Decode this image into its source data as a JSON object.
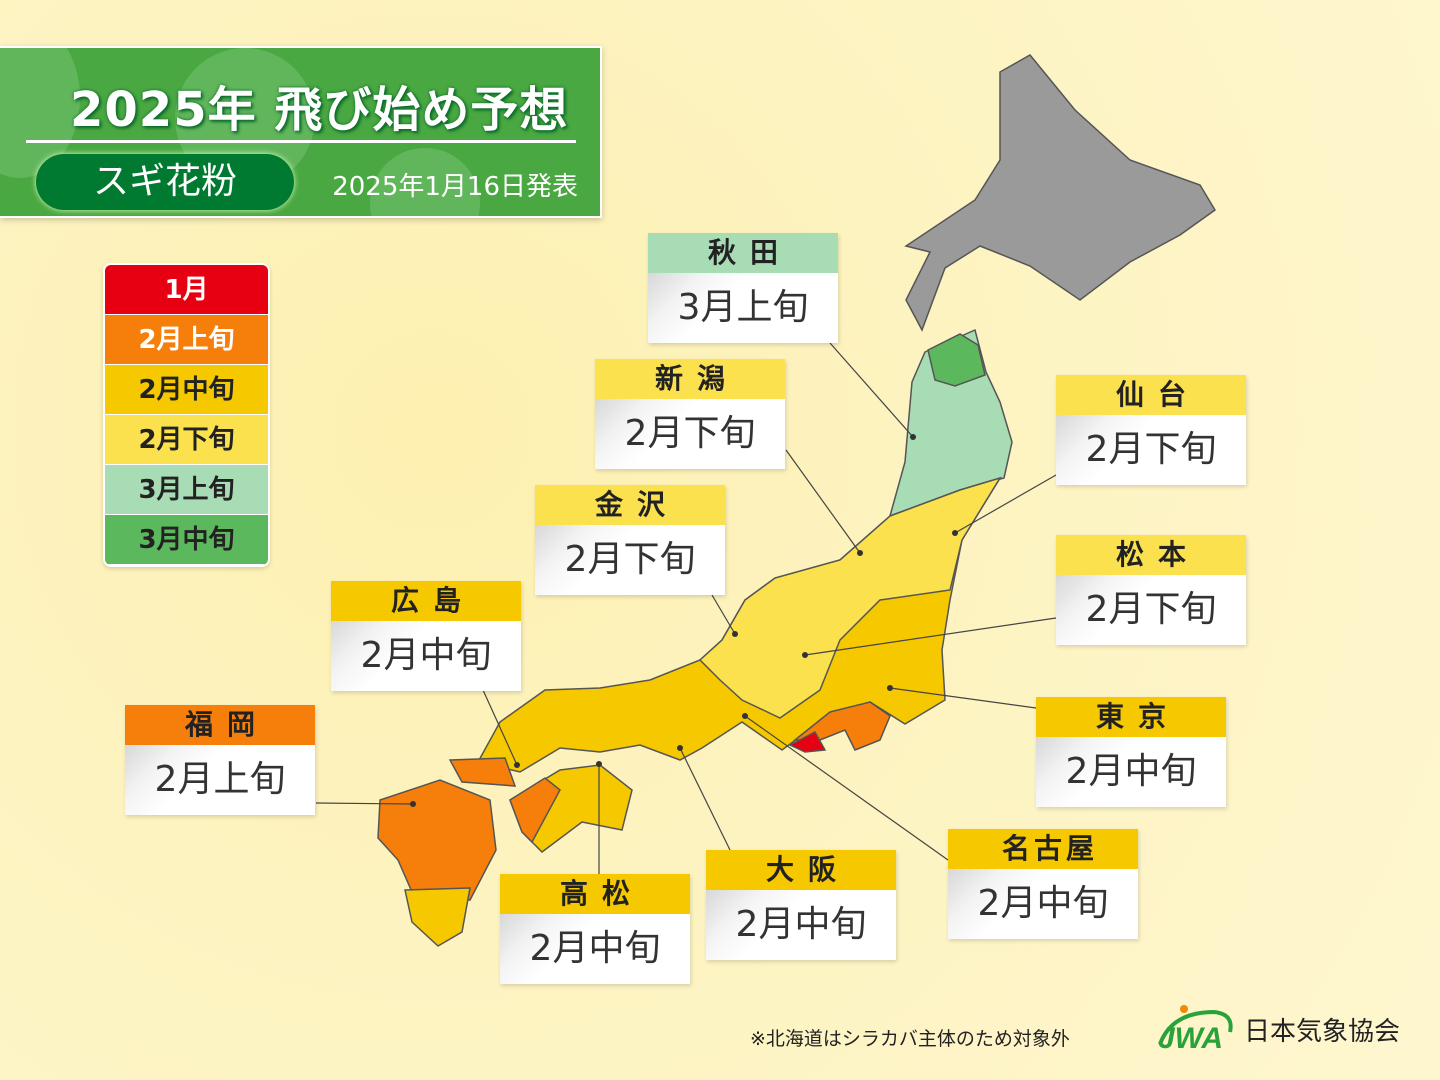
{
  "header": {
    "year": "2025年",
    "title": "飛び始め予想",
    "category": "スギ花粉",
    "announced": "2025年1月16日発表"
  },
  "legend": [
    {
      "label": "1月",
      "color": "#e60012",
      "text_color": "#ffffff"
    },
    {
      "label": "2月上旬",
      "color": "#f57f0a",
      "text_color": "#ffffff"
    },
    {
      "label": "2月中旬",
      "color": "#f5c800",
      "text_color": "#222222"
    },
    {
      "label": "2月下旬",
      "color": "#fbe14e",
      "text_color": "#222222"
    },
    {
      "label": "3月上旬",
      "color": "#a8dcb5",
      "text_color": "#222222"
    },
    {
      "label": "3月中旬",
      "color": "#5cb85c",
      "text_color": "#222222"
    }
  ],
  "cities": [
    {
      "name": "秋田",
      "value": "3月上旬",
      "color": "#a8dcb5"
    },
    {
      "name": "新潟",
      "value": "2月下旬",
      "color": "#fbe14e"
    },
    {
      "name": "金沢",
      "value": "2月下旬",
      "color": "#fbe14e"
    },
    {
      "name": "広島",
      "value": "2月中旬",
      "color": "#f5c800"
    },
    {
      "name": "福岡",
      "value": "2月上旬",
      "color": "#f57f0a"
    },
    {
      "name": "仙台",
      "value": "2月下旬",
      "color": "#fbe14e"
    },
    {
      "name": "松本",
      "value": "2月下旬",
      "color": "#fbe14e"
    },
    {
      "name": "東京",
      "value": "2月中旬",
      "color": "#f5c800"
    },
    {
      "name": "名古屋",
      "value": "2月中旬",
      "color": "#f5c800"
    },
    {
      "name": "大阪",
      "value": "2月中旬",
      "color": "#f5c800"
    },
    {
      "name": "高松",
      "value": "2月中旬",
      "color": "#f5c800"
    }
  ],
  "regions": {
    "hokkaido_color": "#9a9a9a"
  },
  "footnote": "※北海道はシラカバ主体のため対象外",
  "logo": {
    "mark": "JWA",
    "name": "日本気象協会"
  }
}
